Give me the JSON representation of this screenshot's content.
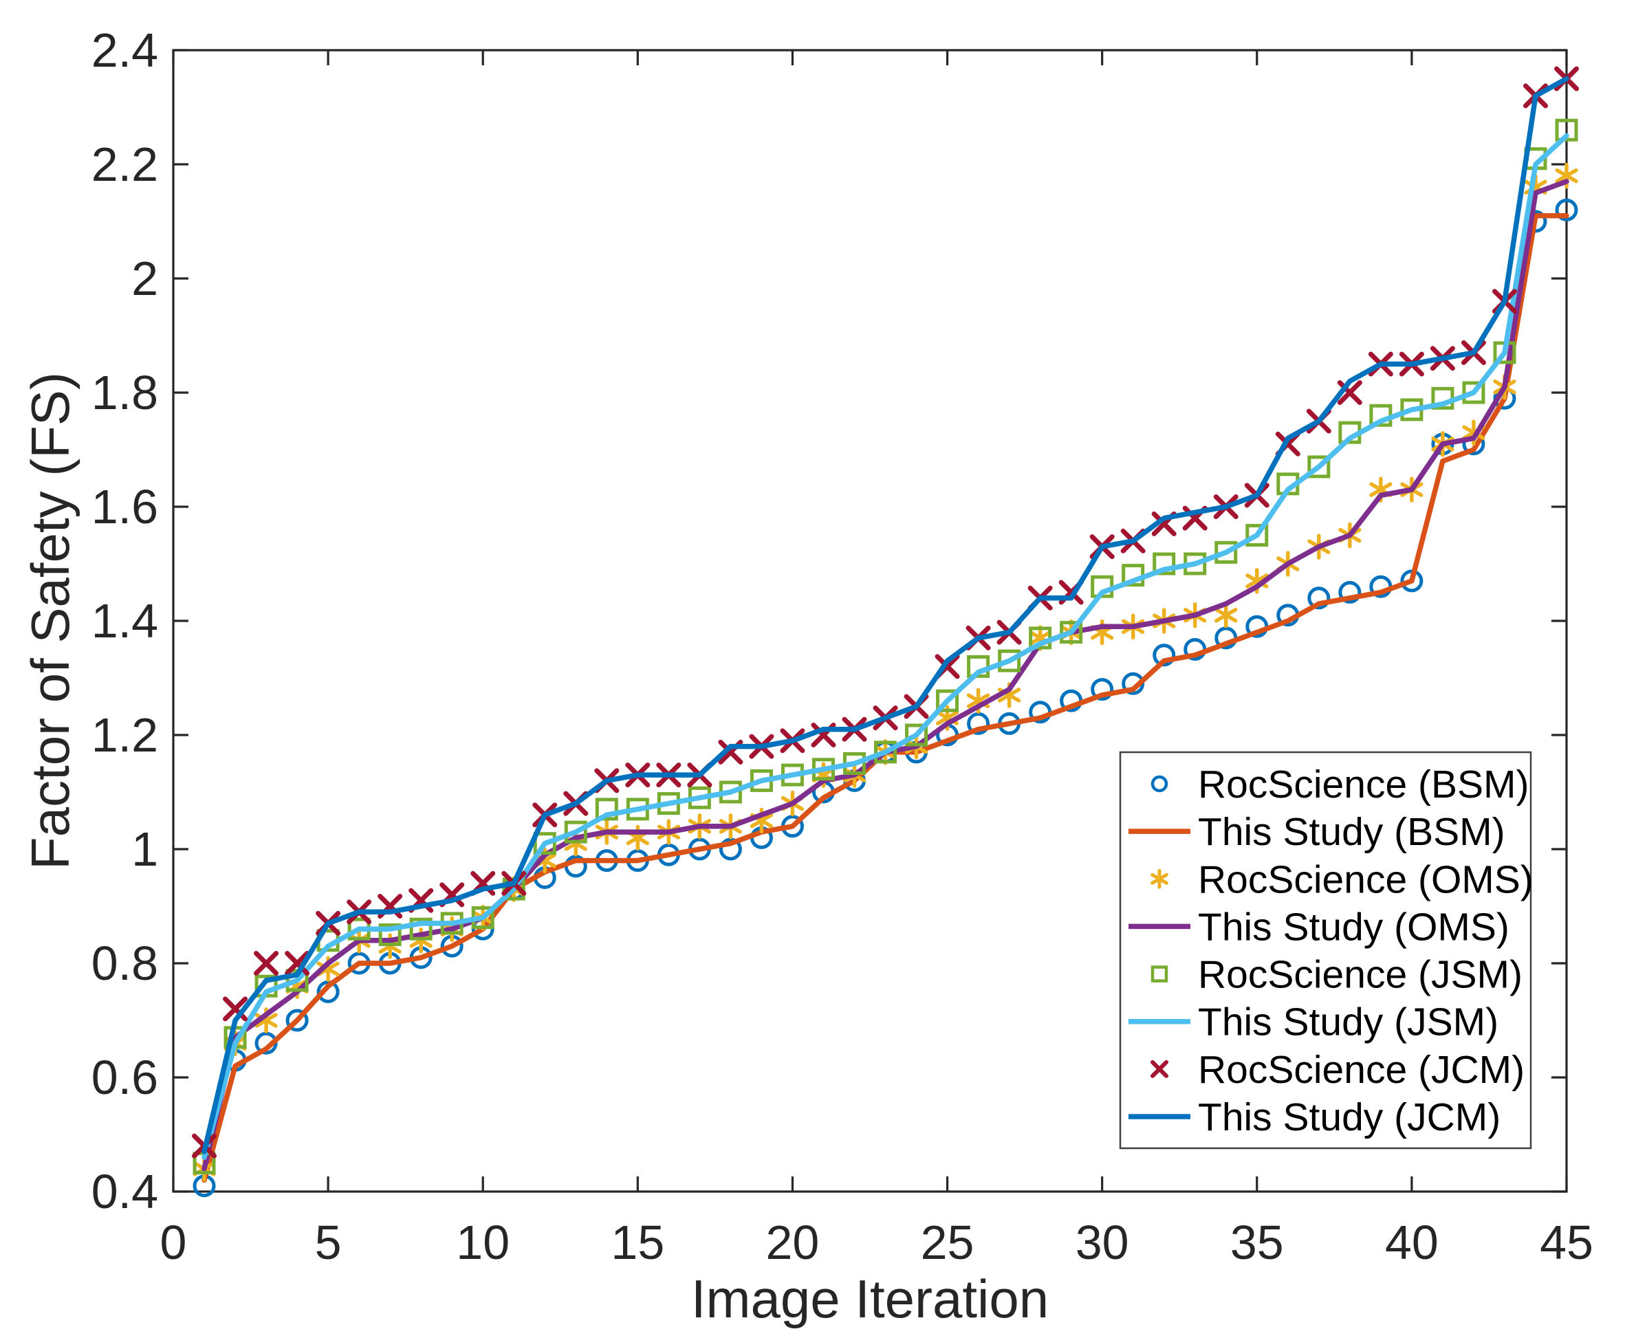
{
  "chart_data": {
    "type": "line",
    "title": "",
    "xlabel": "Image Iteration",
    "ylabel": "Factor of Safety (FS)",
    "xlim": [
      0,
      45
    ],
    "ylim": [
      0.4,
      2.4
    ],
    "grid": "off",
    "legend_position": "inside-lower-right",
    "axis_color": "#262626",
    "background": "#ffffff",
    "xticks": {
      "values": [
        0,
        5,
        10,
        15,
        20,
        25,
        30,
        35,
        40,
        45
      ],
      "labels": [
        "0",
        "5",
        "10",
        "15",
        "20",
        "25",
        "30",
        "35",
        "40",
        "45"
      ]
    },
    "yticks": {
      "values": [
        0.4,
        0.6,
        0.8,
        1.0,
        1.2,
        1.4,
        1.6,
        1.8,
        2.0,
        2.2,
        2.4
      ],
      "labels": [
        "0.4",
        "0.6",
        "0.8",
        "1",
        "1.2",
        "1.4",
        "1.6",
        "1.8",
        "2",
        "2.2",
        "2.4"
      ]
    },
    "x": [
      1,
      2,
      3,
      4,
      5,
      6,
      7,
      8,
      9,
      10,
      11,
      12,
      13,
      14,
      15,
      16,
      17,
      18,
      19,
      20,
      21,
      22,
      23,
      24,
      25,
      26,
      27,
      28,
      29,
      30,
      31,
      32,
      33,
      34,
      35,
      36,
      37,
      38,
      39,
      40,
      41,
      42,
      43,
      44,
      45
    ],
    "series": [
      {
        "name": "rocscience-bsm",
        "label": "RocScience (BSM)",
        "color": "#0072BD",
        "render": "marker",
        "marker": "circle",
        "values": [
          0.41,
          0.63,
          0.66,
          0.7,
          0.75,
          0.8,
          0.8,
          0.81,
          0.83,
          0.86,
          0.93,
          0.95,
          0.97,
          0.98,
          0.98,
          0.99,
          1.0,
          1.0,
          1.02,
          1.04,
          1.1,
          1.12,
          1.17,
          1.17,
          1.2,
          1.22,
          1.22,
          1.24,
          1.26,
          1.28,
          1.29,
          1.34,
          1.35,
          1.37,
          1.39,
          1.41,
          1.44,
          1.45,
          1.46,
          1.47,
          1.71,
          1.71,
          1.79,
          2.1,
          2.12
        ]
      },
      {
        "name": "this-study-bsm",
        "label": "This Study (BSM)",
        "color": "#D95319",
        "render": "line",
        "values": [
          0.42,
          0.62,
          0.65,
          0.7,
          0.76,
          0.8,
          0.8,
          0.81,
          0.83,
          0.86,
          0.93,
          0.96,
          0.98,
          0.98,
          0.98,
          0.99,
          1.0,
          1.01,
          1.03,
          1.04,
          1.09,
          1.12,
          1.17,
          1.17,
          1.19,
          1.21,
          1.22,
          1.23,
          1.25,
          1.27,
          1.28,
          1.33,
          1.34,
          1.36,
          1.38,
          1.4,
          1.43,
          1.44,
          1.45,
          1.47,
          1.68,
          1.7,
          1.79,
          2.11,
          2.11
        ]
      },
      {
        "name": "rocscience-oms",
        "label": "RocScience (OMS)",
        "color": "#EDB120",
        "render": "marker",
        "marker": "asterisk",
        "values": [
          0.44,
          0.66,
          0.7,
          0.76,
          0.79,
          0.84,
          0.83,
          0.84,
          0.86,
          0.88,
          0.93,
          0.98,
          1.01,
          1.03,
          1.02,
          1.03,
          1.04,
          1.04,
          1.05,
          1.08,
          1.13,
          1.13,
          1.17,
          1.18,
          1.23,
          1.26,
          1.27,
          1.37,
          1.38,
          1.38,
          1.39,
          1.4,
          1.41,
          1.41,
          1.47,
          1.5,
          1.53,
          1.55,
          1.63,
          1.63,
          1.71,
          1.73,
          1.81,
          2.16,
          2.18
        ]
      },
      {
        "name": "this-study-oms",
        "label": "This Study (OMS)",
        "color": "#7E2F8E",
        "render": "line",
        "values": [
          0.44,
          0.67,
          0.71,
          0.75,
          0.8,
          0.84,
          0.84,
          0.85,
          0.86,
          0.88,
          0.93,
          0.99,
          1.02,
          1.03,
          1.03,
          1.03,
          1.04,
          1.04,
          1.06,
          1.08,
          1.12,
          1.13,
          1.17,
          1.18,
          1.22,
          1.25,
          1.28,
          1.36,
          1.38,
          1.39,
          1.39,
          1.4,
          1.41,
          1.43,
          1.46,
          1.5,
          1.53,
          1.55,
          1.62,
          1.63,
          1.71,
          1.72,
          1.81,
          2.15,
          2.17
        ]
      },
      {
        "name": "rocscience-jsm",
        "label": "RocScience (JSM)",
        "color": "#77AC30",
        "render": "marker",
        "marker": "square",
        "values": [
          0.45,
          0.67,
          0.76,
          0.77,
          0.84,
          0.86,
          0.85,
          0.86,
          0.87,
          0.88,
          0.93,
          1.01,
          1.03,
          1.07,
          1.07,
          1.08,
          1.09,
          1.1,
          1.12,
          1.13,
          1.14,
          1.15,
          1.17,
          1.2,
          1.26,
          1.32,
          1.33,
          1.37,
          1.38,
          1.46,
          1.48,
          1.5,
          1.5,
          1.52,
          1.55,
          1.64,
          1.67,
          1.73,
          1.76,
          1.77,
          1.79,
          1.8,
          1.87,
          2.21,
          2.26
        ]
      },
      {
        "name": "this-study-jsm",
        "label": "This Study (JSM)",
        "color": "#4DBEEE",
        "render": "line",
        "values": [
          0.46,
          0.66,
          0.75,
          0.77,
          0.83,
          0.86,
          0.86,
          0.87,
          0.87,
          0.88,
          0.93,
          1.01,
          1.03,
          1.06,
          1.07,
          1.08,
          1.09,
          1.1,
          1.12,
          1.13,
          1.14,
          1.15,
          1.17,
          1.2,
          1.26,
          1.31,
          1.33,
          1.36,
          1.38,
          1.45,
          1.47,
          1.49,
          1.5,
          1.52,
          1.55,
          1.63,
          1.67,
          1.72,
          1.75,
          1.77,
          1.78,
          1.8,
          1.87,
          2.2,
          2.25
        ]
      },
      {
        "name": "rocscience-jcm",
        "label": "RocScience (JCM)",
        "color": "#A2142F",
        "render": "marker",
        "marker": "x",
        "values": [
          0.48,
          0.72,
          0.8,
          0.8,
          0.87,
          0.89,
          0.9,
          0.91,
          0.92,
          0.94,
          0.94,
          1.06,
          1.08,
          1.12,
          1.13,
          1.13,
          1.13,
          1.17,
          1.18,
          1.19,
          1.2,
          1.21,
          1.23,
          1.25,
          1.32,
          1.37,
          1.38,
          1.44,
          1.45,
          1.53,
          1.54,
          1.57,
          1.58,
          1.6,
          1.62,
          1.71,
          1.75,
          1.8,
          1.85,
          1.85,
          1.86,
          1.87,
          1.96,
          2.32,
          2.35
        ]
      },
      {
        "name": "this-study-jcm",
        "label": "This Study (JCM)",
        "color": "#0072BD",
        "render": "line",
        "values": [
          0.47,
          0.7,
          0.77,
          0.78,
          0.87,
          0.89,
          0.89,
          0.9,
          0.91,
          0.93,
          0.94,
          1.06,
          1.08,
          1.12,
          1.13,
          1.13,
          1.13,
          1.18,
          1.18,
          1.19,
          1.21,
          1.21,
          1.23,
          1.25,
          1.33,
          1.37,
          1.38,
          1.44,
          1.44,
          1.53,
          1.54,
          1.58,
          1.59,
          1.6,
          1.62,
          1.72,
          1.75,
          1.82,
          1.85,
          1.85,
          1.86,
          1.87,
          1.96,
          2.32,
          2.35
        ]
      }
    ]
  }
}
